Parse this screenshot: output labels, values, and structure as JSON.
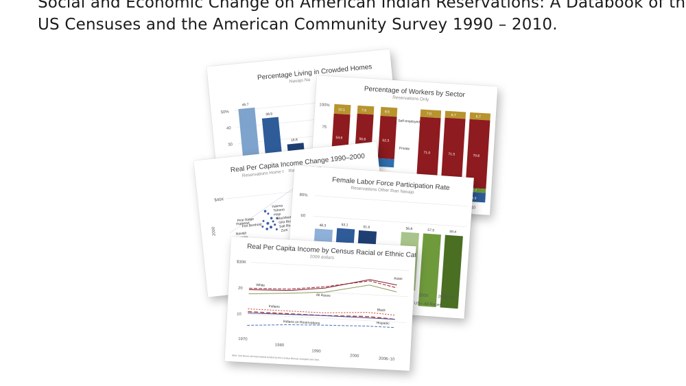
{
  "headline": {
    "line1": "Social and Economic Change on American Indian Reservations: A Databook of the",
    "line2": "US Censuses and the American Community Survey 1990 – 2010."
  },
  "cards": {
    "crowded": {
      "title": "Percentage Living in Crowded Homes",
      "subtitle": "Navajo Na",
      "yticks": [
        "50%",
        "40",
        "30",
        "20"
      ],
      "bar_labels": [
        "45.7",
        "38.9",
        "16.8"
      ]
    },
    "sector": {
      "title": "Percentage of Workers by Sector",
      "subtitle": "Reservations Only",
      "yticks": [
        "100%",
        "75"
      ],
      "top_labels": [
        "10.1",
        "7.6",
        "8.5",
        "7.0",
        "6.7",
        "6.7"
      ],
      "mid_labels": [
        "54.6",
        "56.8",
        "52.3",
        "71.0",
        "71.5",
        "70.8"
      ],
      "self_employed": "Self-employed",
      "private": "Private",
      "low_labels": [
        "2.7",
        "4.8"
      ],
      "xtick_last": "06–10"
    },
    "income_change": {
      "title": "Real Per Capita Income Change 1990–2000",
      "subtitle": "Reservations Home t",
      "subtitle2": "than 150 Indians",
      "ytick": "$40K",
      "yaxis": "2000",
      "point_labels": [
        "Yakima",
        "Tohono",
        "Hopi",
        "Blackfeet",
        "Flathead",
        "Pine Ridge",
        "Fort Berthold",
        "Gila River",
        "Salt River",
        "Zuni",
        "Navajo",
        "Laguna"
      ]
    },
    "female_lfp": {
      "title": "Female Labor Force Participation Rate",
      "subtitle": "Reservations Other than Navajo",
      "yticks": [
        "80%",
        "60"
      ],
      "bar_labels": [
        "48.3",
        "53.1",
        "51.6",
        "56.8",
        "57.5",
        "59.4"
      ],
      "xticks": [
        "2000",
        "2006–10"
      ],
      "xnote": "US—All Races"
    },
    "income_race": {
      "title": "Real Per Capita Income by Census Racial or Ethnic Category",
      "subtitle": "2009 dollars",
      "yticks": [
        "$30K",
        "20",
        "10"
      ],
      "xticks": [
        "1970",
        "1980",
        "1990",
        "2000",
        "2006–10"
      ],
      "series_labels": {
        "white": "White",
        "asian": "Asian",
        "all": "All Races",
        "indians": "Indians",
        "black": "Black",
        "hispanic": "Hispanic",
        "reservations": "Indians on Reservations"
      },
      "colors": {
        "white": "#b23a48",
        "asian": "#7a1f2b",
        "all": "#8a9a5b",
        "indians": "#3b4ea0",
        "black": "#c0392b",
        "hispanic": "#c0392b",
        "reservations": "#4a6fb5"
      },
      "footnote": "Note: Not shown all reservations funded by the Census Bureau changed over time."
    }
  }
}
